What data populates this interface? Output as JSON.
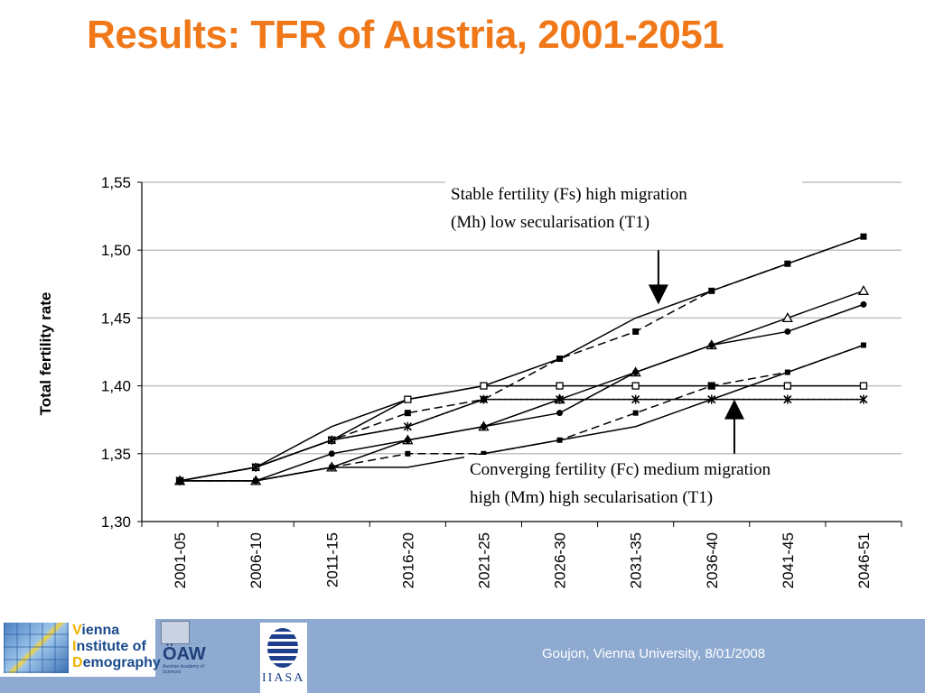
{
  "slide": {
    "title": "Results: TFR of Austria, 2001-2051",
    "footer": "Goujon,  Vienna University, 8/01/2008"
  },
  "logos": {
    "vid": {
      "line1_cap": "V",
      "line1": "ienna",
      "line2_cap": "I",
      "line2": "nstitute of",
      "line3_cap": "D",
      "line3": "emography"
    },
    "oaw": {
      "name": "ÖAW",
      "subtitle": "Austrian Academy of Sciences"
    },
    "iiasa": {
      "name": "IIASA"
    }
  },
  "colors": {
    "title": "#f07818",
    "footer_bar": "#8eaad0",
    "lines": "#000000",
    "grid": "#c0c0c0"
  },
  "chart_data": {
    "type": "line",
    "title": "",
    "xlabel": "",
    "ylabel": "Total fertility rate",
    "categories": [
      "2001-05",
      "2006-10",
      "2011-15",
      "2016-20",
      "2021-25",
      "2026-30",
      "2031-35",
      "2036-40",
      "2041-45",
      "2046-51"
    ],
    "ylim": [
      1.3,
      1.55
    ],
    "yticks": [
      "1,30",
      "1,35",
      "1,40",
      "1,45",
      "1,50",
      "1,55"
    ],
    "grid": true,
    "series": [
      {
        "marker": "none",
        "dash": "solid",
        "values": [
          1.33,
          1.34,
          1.37,
          1.39,
          1.4,
          1.42,
          1.45,
          1.47,
          1.49,
          1.51
        ]
      },
      {
        "marker": "filled-square",
        "dash": "dashed",
        "values": [
          1.33,
          1.34,
          1.36,
          1.38,
          1.39,
          1.42,
          1.44,
          1.47,
          1.49,
          1.51
        ]
      },
      {
        "marker": "open-triangle",
        "dash": "solid",
        "values": [
          1.33,
          1.33,
          1.34,
          1.36,
          1.37,
          1.39,
          1.41,
          1.43,
          1.45,
          1.47
        ]
      },
      {
        "marker": "filled-circle",
        "dash": "solid",
        "values": [
          1.33,
          1.33,
          1.35,
          1.36,
          1.37,
          1.38,
          1.41,
          1.43,
          1.44,
          1.46
        ]
      },
      {
        "marker": "open-square",
        "dash": "solid",
        "values": [
          1.33,
          1.34,
          1.36,
          1.39,
          1.4,
          1.4,
          1.4,
          1.4,
          1.4,
          1.4
        ]
      },
      {
        "marker": "star",
        "dash": "dotted",
        "values": [
          1.33,
          1.34,
          1.36,
          1.37,
          1.39,
          1.39,
          1.39,
          1.39,
          1.39,
          1.39
        ]
      },
      {
        "marker": "x",
        "dash": "solid",
        "values": [
          1.33,
          1.34,
          1.36,
          1.37,
          1.39,
          1.39,
          1.39,
          1.39,
          1.39,
          1.39
        ]
      },
      {
        "marker": "filled-square-small",
        "dash": "dashed",
        "values": [
          1.33,
          1.33,
          1.34,
          1.35,
          1.35,
          1.36,
          1.38,
          1.4,
          1.41,
          1.43
        ]
      },
      {
        "marker": "none",
        "dash": "solid",
        "values": [
          1.33,
          1.33,
          1.34,
          1.34,
          1.35,
          1.36,
          1.37,
          1.39,
          1.41,
          1.43
        ]
      }
    ],
    "annotations": [
      {
        "text_line1": "Stable fertility (Fs) high migration",
        "text_line2": "(Mh) low secularisation (T1)",
        "arrow": "down",
        "category_pos": 6.3,
        "arrow_from": 1.5,
        "arrow_to": 1.46
      },
      {
        "text_line1": "Converging fertility (Fc) medium migration",
        "text_line2": "high (Mm) high secularisation (T1)",
        "arrow": "up",
        "category_pos": 7.3,
        "arrow_from": 1.35,
        "arrow_to": 1.39
      }
    ]
  }
}
